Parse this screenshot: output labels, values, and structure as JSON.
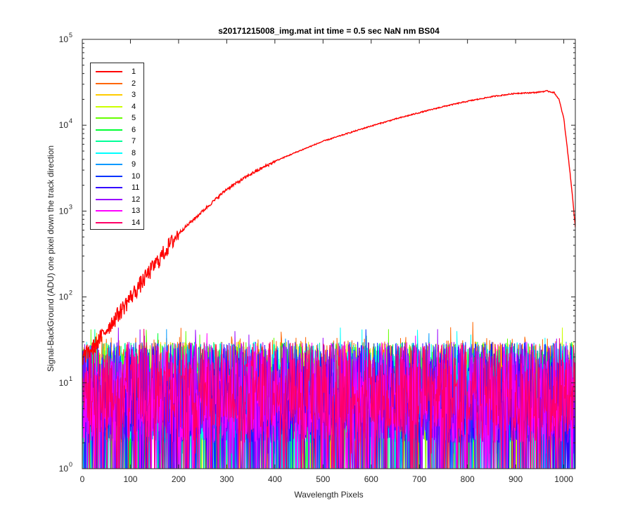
{
  "chart_data": {
    "type": "line",
    "title": "s20171215008_img.mat int time = 0.5 sec  NaN nm BS04",
    "xlabel": "Wavelength Pixels",
    "ylabel": "Signal-BackGround (ADU) one pixel down the track direction",
    "yscale": "log",
    "xlim": [
      0,
      1024
    ],
    "ylim": [
      1,
      100000
    ],
    "x_ticks": [
      "0",
      "100",
      "200",
      "300",
      "400",
      "500",
      "600",
      "700",
      "800",
      "900",
      "1000"
    ],
    "y_ticks": [
      {
        "base": "10",
        "exp": "0"
      },
      {
        "base": "10",
        "exp": "1"
      },
      {
        "base": "10",
        "exp": "2"
      },
      {
        "base": "10",
        "exp": "3"
      },
      {
        "base": "10",
        "exp": "4"
      },
      {
        "base": "10",
        "exp": "5"
      }
    ],
    "legend_position": "top-left",
    "grid": false,
    "series": [
      {
        "name": "1",
        "color": "#ff0000",
        "x": [
          0,
          20,
          40,
          60,
          80,
          100,
          120,
          140,
          160,
          180,
          200,
          250,
          300,
          350,
          400,
          450,
          500,
          550,
          600,
          650,
          700,
          750,
          800,
          850,
          900,
          940,
          965,
          980,
          990,
          1000,
          1010,
          1018,
          1024
        ],
        "y": [
          20,
          25,
          35,
          50,
          70,
          100,
          140,
          200,
          280,
          400,
          550,
          1000,
          1800,
          2700,
          3800,
          5000,
          6500,
          8000,
          9800,
          11800,
          14000,
          16500,
          19000,
          21500,
          23500,
          24000,
          25000,
          24000,
          20000,
          12000,
          4000,
          1500,
          650
        ]
      },
      {
        "name": "2",
        "color": "#ff6600",
        "noise": [
          3,
          35
        ]
      },
      {
        "name": "3",
        "color": "#ffcc00",
        "noise": [
          2,
          30
        ]
      },
      {
        "name": "4",
        "color": "#ccff00",
        "noise": [
          2,
          30
        ]
      },
      {
        "name": "5",
        "color": "#66ff00",
        "noise": [
          2,
          30
        ]
      },
      {
        "name": "6",
        "color": "#00ff33",
        "noise": [
          2,
          30
        ]
      },
      {
        "name": "7",
        "color": "#00ff99",
        "noise": [
          2,
          30
        ]
      },
      {
        "name": "8",
        "color": "#00ffff",
        "noise": [
          2,
          30
        ]
      },
      {
        "name": "9",
        "color": "#0099ff",
        "noise": [
          2,
          30
        ]
      },
      {
        "name": "10",
        "color": "#0033ff",
        "noise": [
          2,
          30
        ]
      },
      {
        "name": "11",
        "color": "#3300ff",
        "noise": [
          2,
          30
        ]
      },
      {
        "name": "12",
        "color": "#9900ff",
        "noise": [
          2,
          30
        ]
      },
      {
        "name": "13",
        "color": "#ff00ff",
        "noise": [
          2,
          30
        ]
      },
      {
        "name": "14",
        "color": "#ff0066",
        "noise": [
          3,
          30
        ]
      }
    ]
  }
}
